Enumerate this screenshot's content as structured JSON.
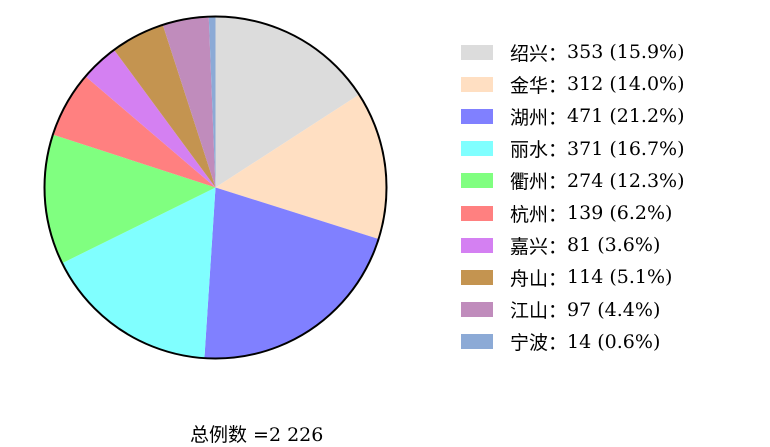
{
  "chart_data": {
    "type": "pie",
    "start": "top",
    "direction": "clockwise",
    "slices": [
      {
        "label": "绍兴",
        "value": 353,
        "pct": "15.9%",
        "color": "#dcdcdc"
      },
      {
        "label": "金华",
        "value": 312,
        "pct": "14.0%",
        "color": "#ffdfc2"
      },
      {
        "label": "湖州",
        "value": 471,
        "pct": "21.2%",
        "color": "#8080ff"
      },
      {
        "label": "丽水",
        "value": 371,
        "pct": "16.7%",
        "color": "#80ffff"
      },
      {
        "label": "衢州",
        "value": 274,
        "pct": "12.3%",
        "color": "#80ff80"
      },
      {
        "label": "杭州",
        "value": 139,
        "pct": "6.2%",
        "color": "#ff8080"
      },
      {
        "label": "嘉兴",
        "value": 81,
        "pct": "3.6%",
        "color": "#d480f2"
      },
      {
        "label": "舟山",
        "value": 114,
        "pct": "5.1%",
        "color": "#c49450"
      },
      {
        "label": "江山",
        "value": 97,
        "pct": "4.4%",
        "color": "#c08cbc"
      },
      {
        "label": "宁波",
        "value": 14,
        "pct": "0.6%",
        "color": "#8caad6"
      }
    ],
    "legend_placement": "right",
    "total_label": "总例数 =2 226"
  }
}
